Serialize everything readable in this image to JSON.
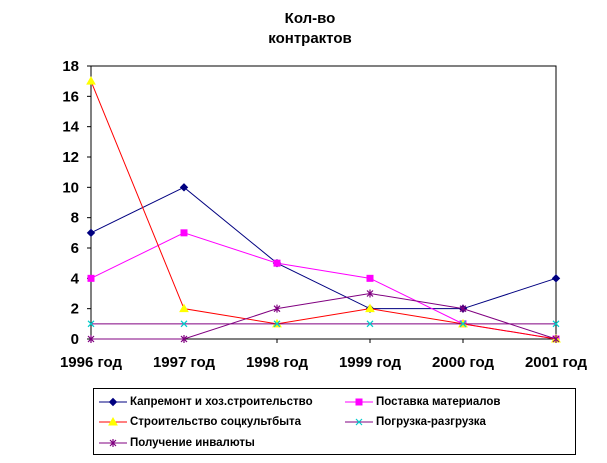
{
  "chart_data": {
    "type": "line",
    "title": [
      "Кол-во",
      "контрактов"
    ],
    "categories": [
      "1996 год",
      "1997 год",
      "1998 год",
      "1999 год",
      "2000 год",
      "2001 год"
    ],
    "ylim": [
      0,
      18
    ],
    "yticks": [
      0,
      2,
      4,
      6,
      8,
      10,
      12,
      14,
      16,
      18
    ],
    "grid": false,
    "legend_position": "bottom",
    "xlabel": "",
    "ylabel": "",
    "series": [
      {
        "name": "Капремонт и хоз.строительство",
        "values": [
          7,
          10,
          5,
          2,
          2,
          4
        ],
        "color": "#000080",
        "marker": "diamond"
      },
      {
        "name": "Поставка материалов",
        "values": [
          4,
          7,
          5,
          4,
          1,
          0
        ],
        "color": "#FF00FF",
        "marker": "square"
      },
      {
        "name": "Строительство соцкультбыта",
        "values": [
          17,
          2,
          1,
          2,
          1,
          0
        ],
        "color": "#FF0000",
        "marker": "triangle",
        "marker_color": "#FFFF00"
      },
      {
        "name": "Погрузка-разгрузка",
        "values": [
          1,
          1,
          1,
          1,
          1,
          1
        ],
        "color": "#800080",
        "marker": "x",
        "marker_color": "#00CCCC"
      },
      {
        "name": "Получение инвалюты",
        "values": [
          0,
          0,
          2,
          3,
          2,
          0
        ],
        "color": "#800080",
        "marker": "star"
      }
    ]
  }
}
